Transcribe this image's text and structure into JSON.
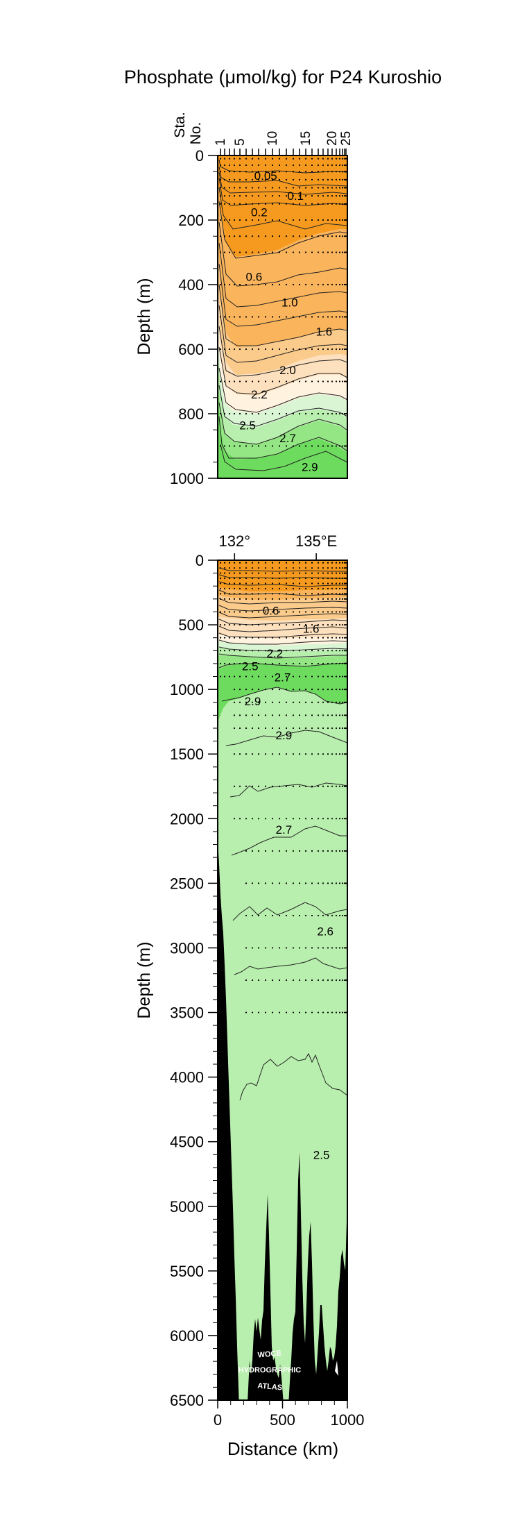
{
  "figure": {
    "title": "Phosphate (μmol/kg) for P24 Kuroshio",
    "watermark": [
      "WOCE",
      "HYDROGRAPHIC",
      "ATLAS"
    ]
  },
  "colors": {
    "orange_dark": "#f59a1f",
    "orange_mid": "#f9b45c",
    "orange_light": "#fbcb8c",
    "peach": "#fde0bd",
    "pale": "#fff2de",
    "green_pale": "#d9f5d4",
    "green_light": "#b9efae",
    "green_mid": "#93e683",
    "green": "#6ddc5e",
    "bathymetry": "#000000",
    "contour": "#222222",
    "station_dot": "#000000"
  },
  "chart_data": [
    {
      "type": "contour-section",
      "panel": "upper",
      "title": "",
      "ylabel": "Depth (m)",
      "ylim": [
        1000,
        0
      ],
      "yticks": [
        0,
        200,
        400,
        600,
        800,
        1000
      ],
      "top_axis": {
        "label": [
          "Sta.",
          "No."
        ],
        "station_ticks": [
          "1",
          "5",
          "10",
          "15",
          "20",
          "25"
        ]
      },
      "x_range_km": [
        0,
        1000
      ],
      "contour_labels": [
        {
          "text": "0.05",
          "x_km": 370,
          "depth": 62
        },
        {
          "text": "0.1",
          "x_km": 600,
          "depth": 125
        },
        {
          "text": "0.2",
          "x_km": 320,
          "depth": 175
        },
        {
          "text": "0.6",
          "x_km": 280,
          "depth": 375
        },
        {
          "text": "1.0",
          "x_km": 555,
          "depth": 455
        },
        {
          "text": "1.6",
          "x_km": 820,
          "depth": 545
        },
        {
          "text": "2.0",
          "x_km": 540,
          "depth": 665
        },
        {
          "text": "2.2",
          "x_km": 320,
          "depth": 740
        },
        {
          "text": "2.5",
          "x_km": 230,
          "depth": 835
        },
        {
          "text": "2.7",
          "x_km": 540,
          "depth": 875
        },
        {
          "text": "2.9",
          "x_km": 710,
          "depth": 965
        }
      ]
    },
    {
      "type": "contour-section",
      "panel": "lower",
      "title": "",
      "ylabel": "Depth (m)",
      "xlabel": "Distance (km)",
      "ylim": [
        6500,
        0
      ],
      "yticks": [
        0,
        500,
        1000,
        1500,
        2000,
        2500,
        3000,
        3500,
        4000,
        4500,
        5000,
        5500,
        6000,
        6500
      ],
      "xlim": [
        0,
        1000
      ],
      "xticks": [
        0,
        500,
        1000
      ],
      "top_axis": {
        "longitude_labels": [
          {
            "text": "132°",
            "x_km": 130
          },
          {
            "text": "135°E",
            "x_km": 760
          }
        ]
      },
      "contour_labels": [
        {
          "text": "0.6",
          "x_km": 410,
          "depth": 390
        },
        {
          "text": "1.6",
          "x_km": 720,
          "depth": 530
        },
        {
          "text": "2.2",
          "x_km": 440,
          "depth": 720
        },
        {
          "text": "2.5",
          "x_km": 250,
          "depth": 820
        },
        {
          "text": "2.7",
          "x_km": 500,
          "depth": 905
        },
        {
          "text": "2.9",
          "x_km": 270,
          "depth": 1090
        },
        {
          "text": "2.9",
          "x_km": 510,
          "depth": 1355
        },
        {
          "text": "2.7",
          "x_km": 510,
          "depth": 2085
        },
        {
          "text": "2.6",
          "x_km": 830,
          "depth": 2870
        },
        {
          "text": "2.5",
          "x_km": 800,
          "depth": 4600
        }
      ]
    }
  ]
}
